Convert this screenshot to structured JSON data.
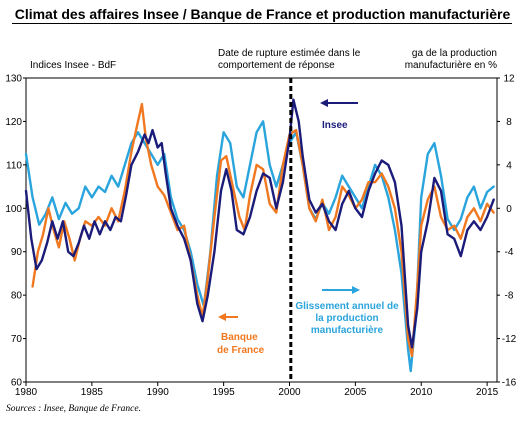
{
  "title": "Climat des affaires Insee / Banque de France et production manufacturière",
  "source": "Sources : Insee, Banque de France.",
  "chart_data": {
    "type": "line",
    "x_ticks": [
      "1980",
      "1985",
      "1990",
      "1995",
      "2000",
      "2005",
      "2010",
      "2015"
    ],
    "left_axis": {
      "label": "Indices Insee - BdF",
      "ticks": [
        130,
        120,
        110,
        100,
        90,
        80,
        70,
        60
      ],
      "ylim": [
        60,
        130
      ]
    },
    "right_axis": {
      "label_line1": "ga de la production",
      "label_line2": "manufacturière en %",
      "ticks": [
        12,
        8,
        4,
        0,
        -4,
        -8,
        -12,
        -16
      ],
      "ylim": [
        -16,
        12
      ]
    },
    "annotation": {
      "line1": "Date de rupture estimée dans le",
      "line2": "comportement de réponse",
      "x": 2000.1
    },
    "series": [
      {
        "name": "Insee",
        "color": "#1b1b7a",
        "axis": "left",
        "points": [
          [
            1980.0,
            104
          ],
          [
            1980.4,
            93
          ],
          [
            1980.8,
            86
          ],
          [
            1981.2,
            88
          ],
          [
            1981.6,
            92
          ],
          [
            1982.0,
            97
          ],
          [
            1982.4,
            93
          ],
          [
            1982.8,
            97
          ],
          [
            1983.2,
            90
          ],
          [
            1983.6,
            89
          ],
          [
            1984.0,
            92
          ],
          [
            1984.4,
            96
          ],
          [
            1984.8,
            93
          ],
          [
            1985.2,
            97
          ],
          [
            1985.6,
            94
          ],
          [
            1986.0,
            97
          ],
          [
            1986.4,
            95
          ],
          [
            1986.8,
            98
          ],
          [
            1987.2,
            97
          ],
          [
            1987.6,
            103
          ],
          [
            1988.0,
            110
          ],
          [
            1988.5,
            113
          ],
          [
            1989.0,
            117
          ],
          [
            1989.3,
            115
          ],
          [
            1989.6,
            118
          ],
          [
            1990.0,
            114
          ],
          [
            1990.3,
            115
          ],
          [
            1990.6,
            108
          ],
          [
            1991.0,
            100
          ],
          [
            1991.5,
            96
          ],
          [
            1992.0,
            93
          ],
          [
            1992.5,
            88
          ],
          [
            1993.0,
            78
          ],
          [
            1993.4,
            74
          ],
          [
            1993.8,
            80
          ],
          [
            1994.3,
            90
          ],
          [
            1994.8,
            104
          ],
          [
            1995.2,
            109
          ],
          [
            1995.6,
            104
          ],
          [
            1996.0,
            95
          ],
          [
            1996.5,
            94
          ],
          [
            1997.0,
            98
          ],
          [
            1997.5,
            104
          ],
          [
            1998.0,
            108
          ],
          [
            1998.5,
            107
          ],
          [
            1999.0,
            100
          ],
          [
            1999.5,
            106
          ],
          [
            2000.0,
            116
          ],
          [
            2000.3,
            125
          ],
          [
            2000.7,
            120
          ],
          [
            2001.0,
            112
          ],
          [
            2001.5,
            102
          ],
          [
            2002.0,
            99
          ],
          [
            2002.5,
            101
          ],
          [
            2003.0,
            97
          ],
          [
            2003.5,
            95
          ],
          [
            2004.0,
            101
          ],
          [
            2004.5,
            104
          ],
          [
            2005.0,
            100
          ],
          [
            2005.5,
            98
          ],
          [
            2006.0,
            104
          ],
          [
            2006.5,
            108
          ],
          [
            2007.0,
            111
          ],
          [
            2007.5,
            110
          ],
          [
            2008.0,
            106
          ],
          [
            2008.5,
            96
          ],
          [
            2009.0,
            73
          ],
          [
            2009.3,
            68
          ],
          [
            2009.7,
            77
          ],
          [
            2010.0,
            90
          ],
          [
            2010.5,
            97
          ],
          [
            2011.0,
            107
          ],
          [
            2011.5,
            104
          ],
          [
            2012.0,
            94
          ],
          [
            2012.5,
            93
          ],
          [
            2013.0,
            89
          ],
          [
            2013.5,
            95
          ],
          [
            2014.0,
            97
          ],
          [
            2014.5,
            95
          ],
          [
            2015.0,
            98
          ],
          [
            2015.5,
            102
          ]
        ]
      },
      {
        "name": "Banque de France",
        "color": "#f07820",
        "axis": "left",
        "points": [
          [
            1980.5,
            82
          ],
          [
            1980.9,
            90
          ],
          [
            1981.3,
            94
          ],
          [
            1981.7,
            100
          ],
          [
            1982.1,
            95
          ],
          [
            1982.5,
            91
          ],
          [
            1982.9,
            97
          ],
          [
            1983.3,
            93
          ],
          [
            1983.7,
            88
          ],
          [
            1984.1,
            93
          ],
          [
            1984.5,
            97
          ],
          [
            1985.0,
            96
          ],
          [
            1985.5,
            98
          ],
          [
            1986.0,
            96
          ],
          [
            1986.5,
            100
          ],
          [
            1987.0,
            97
          ],
          [
            1987.5,
            104
          ],
          [
            1988.0,
            113
          ],
          [
            1988.5,
            120
          ],
          [
            1988.8,
            124
          ],
          [
            1989.1,
            116
          ],
          [
            1989.5,
            110
          ],
          [
            1990.0,
            105
          ],
          [
            1990.5,
            103
          ],
          [
            1991.0,
            99
          ],
          [
            1991.5,
            95
          ],
          [
            1992.0,
            96
          ],
          [
            1992.5,
            88
          ],
          [
            1993.0,
            80
          ],
          [
            1993.4,
            75
          ],
          [
            1993.8,
            84
          ],
          [
            1994.3,
            98
          ],
          [
            1994.8,
            111
          ],
          [
            1995.2,
            112
          ],
          [
            1995.7,
            105
          ],
          [
            1996.2,
            98
          ],
          [
            1996.6,
            95
          ],
          [
            1997.0,
            103
          ],
          [
            1997.5,
            110
          ],
          [
            1998.0,
            109
          ],
          [
            1998.5,
            101
          ],
          [
            1999.0,
            99
          ],
          [
            1999.5,
            110
          ],
          [
            2000.0,
            117
          ],
          [
            2000.5,
            118
          ],
          [
            2001.0,
            110
          ],
          [
            2001.5,
            100
          ],
          [
            2002.0,
            97
          ],
          [
            2002.5,
            102
          ],
          [
            2003.0,
            95
          ],
          [
            2003.5,
            98
          ],
          [
            2004.0,
            105
          ],
          [
            2004.5,
            103
          ],
          [
            2005.0,
            100
          ],
          [
            2005.5,
            102
          ],
          [
            2006.0,
            106
          ],
          [
            2006.5,
            106
          ],
          [
            2007.0,
            108
          ],
          [
            2007.5,
            105
          ],
          [
            2008.0,
            100
          ],
          [
            2008.5,
            90
          ],
          [
            2009.0,
            70
          ],
          [
            2009.3,
            66
          ],
          [
            2009.7,
            82
          ],
          [
            2010.0,
            96
          ],
          [
            2010.5,
            102
          ],
          [
            2011.0,
            105
          ],
          [
            2011.5,
            98
          ],
          [
            2012.0,
            95
          ],
          [
            2012.5,
            96
          ],
          [
            2013.0,
            93
          ],
          [
            2013.5,
            98
          ],
          [
            2014.0,
            100
          ],
          [
            2014.5,
            97
          ],
          [
            2015.0,
            101
          ],
          [
            2015.5,
            99
          ]
        ]
      },
      {
        "name": "Glissement annuel de la production manufacturière",
        "color": "#2aa4dc",
        "axis": "right",
        "points": [
          [
            1980.0,
            5
          ],
          [
            1980.5,
            1
          ],
          [
            1981.0,
            -1.5
          ],
          [
            1981.5,
            -0.5
          ],
          [
            1982.0,
            1
          ],
          [
            1982.5,
            -1
          ],
          [
            1983.0,
            0.5
          ],
          [
            1983.5,
            -0.5
          ],
          [
            1984.0,
            0
          ],
          [
            1984.5,
            2
          ],
          [
            1985.0,
            1
          ],
          [
            1985.5,
            2
          ],
          [
            1986.0,
            1.5
          ],
          [
            1986.5,
            3
          ],
          [
            1987.0,
            2
          ],
          [
            1987.5,
            4
          ],
          [
            1988.0,
            6
          ],
          [
            1988.5,
            7
          ],
          [
            1989.0,
            6
          ],
          [
            1989.5,
            5
          ],
          [
            1990.0,
            4
          ],
          [
            1990.5,
            5
          ],
          [
            1991.0,
            1
          ],
          [
            1991.5,
            -1
          ],
          [
            1992.0,
            -2
          ],
          [
            1992.5,
            -4
          ],
          [
            1993.0,
            -7
          ],
          [
            1993.5,
            -9
          ],
          [
            1994.0,
            -4
          ],
          [
            1994.5,
            3
          ],
          [
            1995.0,
            7
          ],
          [
            1995.5,
            6
          ],
          [
            1996.0,
            2
          ],
          [
            1996.5,
            1
          ],
          [
            1997.0,
            4
          ],
          [
            1997.5,
            7
          ],
          [
            1998.0,
            8
          ],
          [
            1998.5,
            4
          ],
          [
            1999.0,
            2
          ],
          [
            1999.5,
            4
          ],
          [
            2000.0,
            6
          ],
          [
            2000.5,
            7
          ],
          [
            2001.0,
            4
          ],
          [
            2001.5,
            0
          ],
          [
            2002.0,
            -1
          ],
          [
            2002.5,
            0.5
          ],
          [
            2003.0,
            -0.5
          ],
          [
            2003.5,
            1
          ],
          [
            2004.0,
            3
          ],
          [
            2004.5,
            2
          ],
          [
            2005.0,
            1
          ],
          [
            2005.5,
            0
          ],
          [
            2006.0,
            2
          ],
          [
            2006.5,
            4
          ],
          [
            2007.0,
            3
          ],
          [
            2007.5,
            1
          ],
          [
            2008.0,
            -2
          ],
          [
            2008.5,
            -6
          ],
          [
            2009.0,
            -13
          ],
          [
            2009.2,
            -15
          ],
          [
            2009.6,
            -10
          ],
          [
            2010.0,
            1
          ],
          [
            2010.5,
            5
          ],
          [
            2011.0,
            6
          ],
          [
            2011.5,
            3
          ],
          [
            2012.0,
            -1
          ],
          [
            2012.5,
            -2
          ],
          [
            2013.0,
            -1
          ],
          [
            2013.5,
            1
          ],
          [
            2014.0,
            2
          ],
          [
            2014.5,
            0
          ],
          [
            2015.0,
            1.5
          ],
          [
            2015.5,
            2
          ]
        ]
      }
    ],
    "legend_labels": {
      "insee": "Insee",
      "bdf_line1": "Banque",
      "bdf_line2": "de France",
      "prod_line1": "Glissement annuel de",
      "prod_line2": "la production",
      "prod_line3": "manufacturière"
    }
  }
}
